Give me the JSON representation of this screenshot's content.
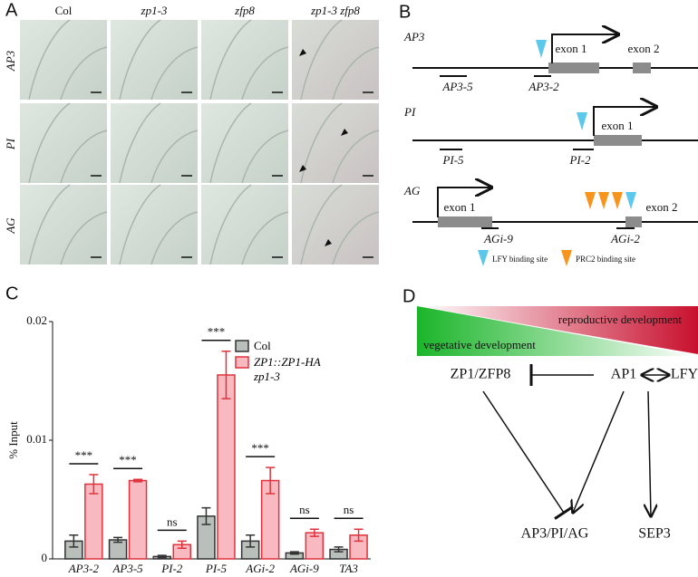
{
  "panel_a": {
    "label": "A",
    "columns": [
      "Col",
      "zp1-3",
      "zfp8",
      "zp1-3 zfp8"
    ],
    "rows": [
      "AP3",
      "PI",
      "AG"
    ]
  },
  "panel_b": {
    "label": "B",
    "genes": [
      {
        "name": "AP3",
        "exons": [
          "exon 1",
          "exon 2"
        ],
        "primers": [
          "AP3-5",
          "AP3-2"
        ]
      },
      {
        "name": "PI",
        "exons": [
          "exon 1"
        ],
        "primers": [
          "PI-5",
          "PI-2"
        ]
      },
      {
        "name": "AG",
        "exons": [
          "exon 1",
          "exon 2"
        ],
        "primers": [
          "AGi-9",
          "AGi-2"
        ]
      }
    ],
    "legend": [
      "LFY binding site",
      "PRC2 binding site"
    ]
  },
  "chart_data": {
    "type": "bar",
    "panel_label": "C",
    "y_label": "% Input",
    "categories": [
      "AP3-2",
      "AP3-5",
      "PI-2",
      "PI-5",
      "AGi-2",
      "AGi-9",
      "TA3"
    ],
    "series": [
      {
        "name": "Col",
        "color": "#b9bfba",
        "edge": "#333333",
        "values": [
          0.0015,
          0.0016,
          0.0002,
          0.0036,
          0.0015,
          0.0005,
          0.0008
        ],
        "errors": [
          0.0005,
          0.0002,
          0.0001,
          0.0007,
          0.0005,
          0.0001,
          0.0002
        ]
      },
      {
        "name": "ZP1::ZP1-HA zp1-3",
        "color": "#f8b9c1",
        "edge": "#e0323c",
        "values": [
          0.0063,
          0.0066,
          0.0012,
          0.0155,
          0.0066,
          0.0022,
          0.002
        ],
        "errors": [
          0.0008,
          0.0001,
          0.0003,
          0.002,
          0.0011,
          0.0003,
          0.0005
        ]
      }
    ],
    "annotations": [
      "***",
      "***",
      "ns",
      "***",
      "***",
      "ns",
      "ns"
    ],
    "ylim": [
      0,
      0.02
    ],
    "yticks": [
      0,
      0.01,
      0.02
    ],
    "legend": "upper right"
  },
  "panel_d": {
    "label": "D",
    "gradient": [
      "reproductive development",
      "vegetative development"
    ],
    "nodes": [
      "ZP1/ZFP8",
      "AP1",
      "LFY",
      "AP3/PI/AG",
      "SEP3"
    ]
  }
}
